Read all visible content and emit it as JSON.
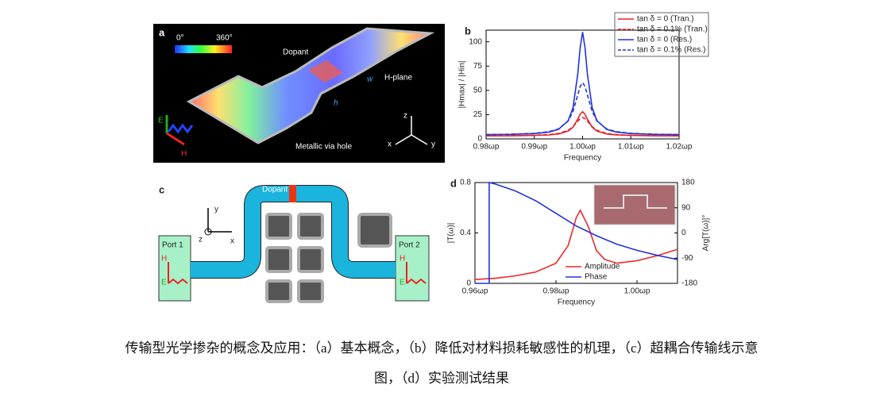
{
  "panel_a": {
    "label": "a",
    "colorbar_min": "0°",
    "colorbar_max": "360°",
    "dopant": "Dopant",
    "w": "w",
    "h_plane": "H-plane",
    "h": "h",
    "via": "Metallic via hole",
    "e": "E",
    "hfield": "H",
    "z": "z",
    "x": "x",
    "y": "y"
  },
  "panel_c": {
    "label": "c",
    "dopant": "Dopant",
    "port1": "Port 1",
    "port2": "Port 2",
    "h1": "H",
    "e1": "E",
    "h2": "H",
    "e2": "E",
    "y": "y",
    "z": "z",
    "x": "x"
  },
  "chart_data": [
    {
      "type": "line",
      "label": "b",
      "xlabel": "Frequency",
      "ylabel": "|Hmax| / |Hin|",
      "x": [
        0.98,
        0.985,
        0.99,
        0.993,
        0.995,
        0.997,
        0.998,
        0.999,
        0.9995,
        1.0,
        1.0005,
        1.001,
        1.002,
        1.003,
        1.005,
        1.007,
        1.01,
        1.015,
        1.02
      ],
      "xlim": [
        0.98,
        1.02
      ],
      "xticks": [
        {
          "value": 0.98,
          "label": "0.98ωp"
        },
        {
          "value": 0.99,
          "label": "0.99ωp"
        },
        {
          "value": 1.0,
          "label": "1.00ωp"
        },
        {
          "value": 1.01,
          "label": "1.01ωp"
        },
        {
          "value": 1.02,
          "label": "1.02ωp"
        }
      ],
      "ylim": [
        0,
        112
      ],
      "yticks": [
        0,
        25,
        50,
        75,
        100
      ],
      "legend": "upper-right",
      "series": [
        {
          "name": "tan δ = 0 (Tran.)",
          "color": "#e8202a",
          "dash": false,
          "values": [
            3.1,
            3.2,
            3.6,
            4.1,
            5.1,
            8,
            12,
            20.3,
            25.5,
            28,
            25.5,
            20.3,
            12,
            8,
            5.1,
            4.1,
            3.6,
            3.2,
            3.1
          ]
        },
        {
          "name": "tan δ = 0.1% (Tran.)",
          "color": "#e8202a",
          "dash": true,
          "values": [
            3.2,
            3.3,
            3.7,
            4.4,
            5.6,
            8.8,
            12.5,
            18.2,
            20.9,
            22,
            20.9,
            18.2,
            12.5,
            8.8,
            5.6,
            4.4,
            3.7,
            3.3,
            3.2
          ]
        },
        {
          "name": "tan δ = 0 (Res.)",
          "color": "#2233dd",
          "dash": false,
          "values": [
            4.4,
            4.7,
            5.5,
            7,
            9.8,
            18.6,
            32,
            66.6,
            94.3,
            110,
            94.3,
            66.6,
            32,
            18.6,
            9.8,
            7,
            5.5,
            4.7,
            4.4
          ]
        },
        {
          "name": "tan δ = 0.1% (Res.)",
          "color": "#2233dd",
          "dash": true,
          "values": [
            4.4,
            4.8,
            5.7,
            7.4,
            10.2,
            18.3,
            28.2,
            45.2,
            54.1,
            58,
            54.1,
            45.2,
            28.2,
            18.3,
            10.2,
            7.4,
            5.7,
            4.8,
            4.4
          ]
        }
      ]
    },
    {
      "type": "line",
      "label": "d",
      "xlabel": "Frequency",
      "ylabel": "|T(ω)|",
      "y2label": "Arg[T(ω)]°",
      "xlim": [
        0.96,
        1.01
      ],
      "xticks": [
        {
          "value": 0.96,
          "label": "0.96ωp"
        },
        {
          "value": 0.98,
          "label": "0.98ωp"
        },
        {
          "value": 1.0,
          "label": "1.00ωp"
        }
      ],
      "ylim": [
        0,
        0.8
      ],
      "yticks": [
        0,
        0.4,
        0.8
      ],
      "y2lim": [
        -180,
        180
      ],
      "y2ticks": [
        -180,
        -90,
        0,
        90,
        180
      ],
      "legend": "lower-center",
      "series": [
        {
          "name": "Amplitude",
          "color": "#ee2a2a",
          "dash": false,
          "x": [
            0.96,
            0.965,
            0.97,
            0.975,
            0.98,
            0.983,
            0.985,
            0.986,
            0.988,
            0.99,
            0.992,
            0.995,
            1.0,
            1.005,
            1.01
          ],
          "values": [
            0.03,
            0.04,
            0.06,
            0.09,
            0.16,
            0.3,
            0.52,
            0.58,
            0.45,
            0.26,
            0.19,
            0.16,
            0.18,
            0.22,
            0.27
          ]
        },
        {
          "name": "Phase",
          "color": "#2233dd",
          "dash": false,
          "axis": "y2",
          "x": [
            0.96,
            0.9635,
            0.9635,
            0.965,
            0.97,
            0.975,
            0.98,
            0.985,
            0.99,
            0.995,
            1.0,
            1.005,
            1.01
          ],
          "values": [
            -180,
            -180,
            180,
            175,
            150,
            115,
            70,
            25,
            -10,
            -40,
            -62,
            -80,
            -95
          ]
        }
      ]
    }
  ],
  "caption": [
    "传输型光学掺杂的概念及应用：（a）基本概念，（b）降低对材料损耗敏感性的机理，（c）超耦合传输线示意",
    "图，（d）实验测试结果"
  ]
}
